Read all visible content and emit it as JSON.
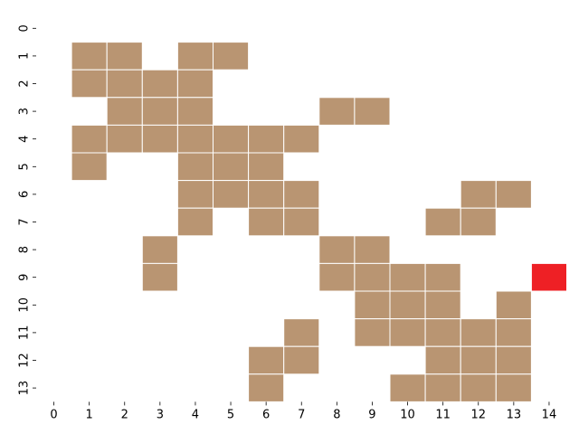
{
  "grid": {
    "x_labels": [
      "0",
      "1",
      "2",
      "3",
      "4",
      "5",
      "6",
      "7",
      "8",
      "9",
      "10",
      "11",
      "12",
      "13",
      "14"
    ],
    "y_labels": [
      "0",
      "1",
      "2",
      "3",
      "4",
      "5",
      "6",
      "7",
      "8",
      "9",
      "10",
      "11",
      "12",
      "13"
    ],
    "colors": {
      "background": "#ffffff",
      "filled": "#b99572",
      "highlight": "#ee2025",
      "cell_border": "#ffffff"
    },
    "filled_cells": [
      [
        1,
        1
      ],
      [
        1,
        2
      ],
      [
        1,
        4
      ],
      [
        1,
        5
      ],
      [
        2,
        1
      ],
      [
        2,
        2
      ],
      [
        2,
        3
      ],
      [
        2,
        4
      ],
      [
        3,
        2
      ],
      [
        3,
        3
      ],
      [
        3,
        4
      ],
      [
        3,
        8
      ],
      [
        3,
        9
      ],
      [
        4,
        1
      ],
      [
        4,
        2
      ],
      [
        4,
        3
      ],
      [
        4,
        4
      ],
      [
        4,
        5
      ],
      [
        4,
        6
      ],
      [
        4,
        7
      ],
      [
        5,
        1
      ],
      [
        5,
        4
      ],
      [
        5,
        5
      ],
      [
        5,
        6
      ],
      [
        6,
        4
      ],
      [
        6,
        5
      ],
      [
        6,
        6
      ],
      [
        6,
        7
      ],
      [
        6,
        12
      ],
      [
        6,
        13
      ],
      [
        7,
        4
      ],
      [
        7,
        6
      ],
      [
        7,
        7
      ],
      [
        7,
        11
      ],
      [
        7,
        12
      ],
      [
        8,
        3
      ],
      [
        8,
        8
      ],
      [
        8,
        9
      ],
      [
        9,
        3
      ],
      [
        9,
        8
      ],
      [
        9,
        9
      ],
      [
        9,
        10
      ],
      [
        9,
        11
      ],
      [
        10,
        9
      ],
      [
        10,
        10
      ],
      [
        10,
        11
      ],
      [
        10,
        13
      ],
      [
        11,
        7
      ],
      [
        11,
        9
      ],
      [
        11,
        10
      ],
      [
        11,
        11
      ],
      [
        11,
        12
      ],
      [
        11,
        13
      ],
      [
        12,
        6
      ],
      [
        12,
        7
      ],
      [
        12,
        11
      ],
      [
        12,
        12
      ],
      [
        12,
        13
      ],
      [
        13,
        6
      ],
      [
        13,
        10
      ],
      [
        13,
        11
      ],
      [
        13,
        12
      ],
      [
        13,
        13
      ]
    ],
    "highlight_cells": [
      [
        9,
        14
      ]
    ]
  }
}
